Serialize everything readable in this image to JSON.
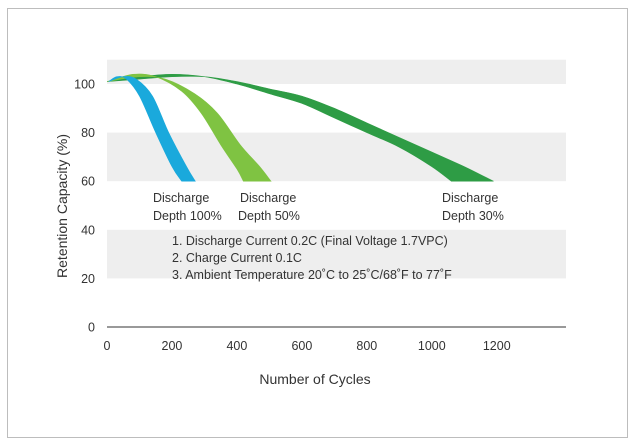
{
  "chart_data": {
    "type": "area",
    "xlabel": "Number of Cycles",
    "ylabel": "Retention Capacity (%)",
    "xlim": [
      0,
      1400
    ],
    "ylim": [
      0,
      110
    ],
    "xticks": [
      "0",
      "200",
      "400",
      "600",
      "800",
      "1000",
      "1200"
    ],
    "yticks": [
      "0",
      "20",
      "40",
      "60",
      "80",
      "100"
    ],
    "grid": "alternating horizontal bands",
    "colors": {
      "dod100": "#1aa9dc",
      "dod50": "#7fc342",
      "dod30": "#2e9c45",
      "band": "#eeeeee"
    },
    "series": [
      {
        "name": "Discharge Depth 100%",
        "upper": [
          [
            5,
            101
          ],
          [
            30,
            103
          ],
          [
            60,
            102
          ],
          [
            100,
            95
          ],
          [
            150,
            80
          ],
          [
            200,
            66
          ],
          [
            230,
            60
          ]
        ],
        "lower": [
          [
            5,
            101
          ],
          [
            50,
            103
          ],
          [
            90,
            102
          ],
          [
            140,
            95
          ],
          [
            190,
            80
          ],
          [
            245,
            66
          ],
          [
            272,
            60
          ]
        ]
      },
      {
        "name": "Discharge Depth 50%",
        "upper": [
          [
            0,
            101
          ],
          [
            80,
            104
          ],
          [
            150,
            103
          ],
          [
            230,
            97
          ],
          [
            290,
            88
          ],
          [
            350,
            75
          ],
          [
            400,
            65
          ],
          [
            420,
            60
          ]
        ],
        "lower": [
          [
            0,
            101
          ],
          [
            100,
            103
          ],
          [
            180,
            102
          ],
          [
            270,
            96
          ],
          [
            340,
            88
          ],
          [
            410,
            75
          ],
          [
            470,
            66
          ],
          [
            505,
            60
          ]
        ]
      },
      {
        "name": "Discharge Depth 30%",
        "upper": [
          [
            0,
            101
          ],
          [
            100,
            103
          ],
          [
            200,
            104
          ],
          [
            300,
            103
          ],
          [
            400,
            100
          ],
          [
            500,
            96
          ],
          [
            600,
            92
          ],
          [
            700,
            86
          ],
          [
            800,
            80
          ],
          [
            900,
            74
          ],
          [
            1000,
            66
          ],
          [
            1060,
            60
          ]
        ],
        "lower": [
          [
            0,
            101
          ],
          [
            100,
            102
          ],
          [
            200,
            103
          ],
          [
            300,
            103
          ],
          [
            400,
            101
          ],
          [
            500,
            98
          ],
          [
            600,
            95
          ],
          [
            700,
            90
          ],
          [
            800,
            84
          ],
          [
            900,
            78
          ],
          [
            1000,
            72
          ],
          [
            1100,
            66
          ],
          [
            1190,
            60
          ]
        ]
      }
    ],
    "labels": [
      {
        "line1": "Discharge",
        "line2": "Depth 100%"
      },
      {
        "line1": "Discharge",
        "line2": "Depth 50%"
      },
      {
        "line1": "Discharge",
        "line2": "Depth 30%"
      }
    ],
    "notes": [
      "1. Discharge Current 0.2C (Final Voltage 1.7VPC)",
      "2. Charge Current 0.1C",
      "3. Ambient Temperature 20˚C to 25˚C/68˚F to 77˚F"
    ]
  }
}
